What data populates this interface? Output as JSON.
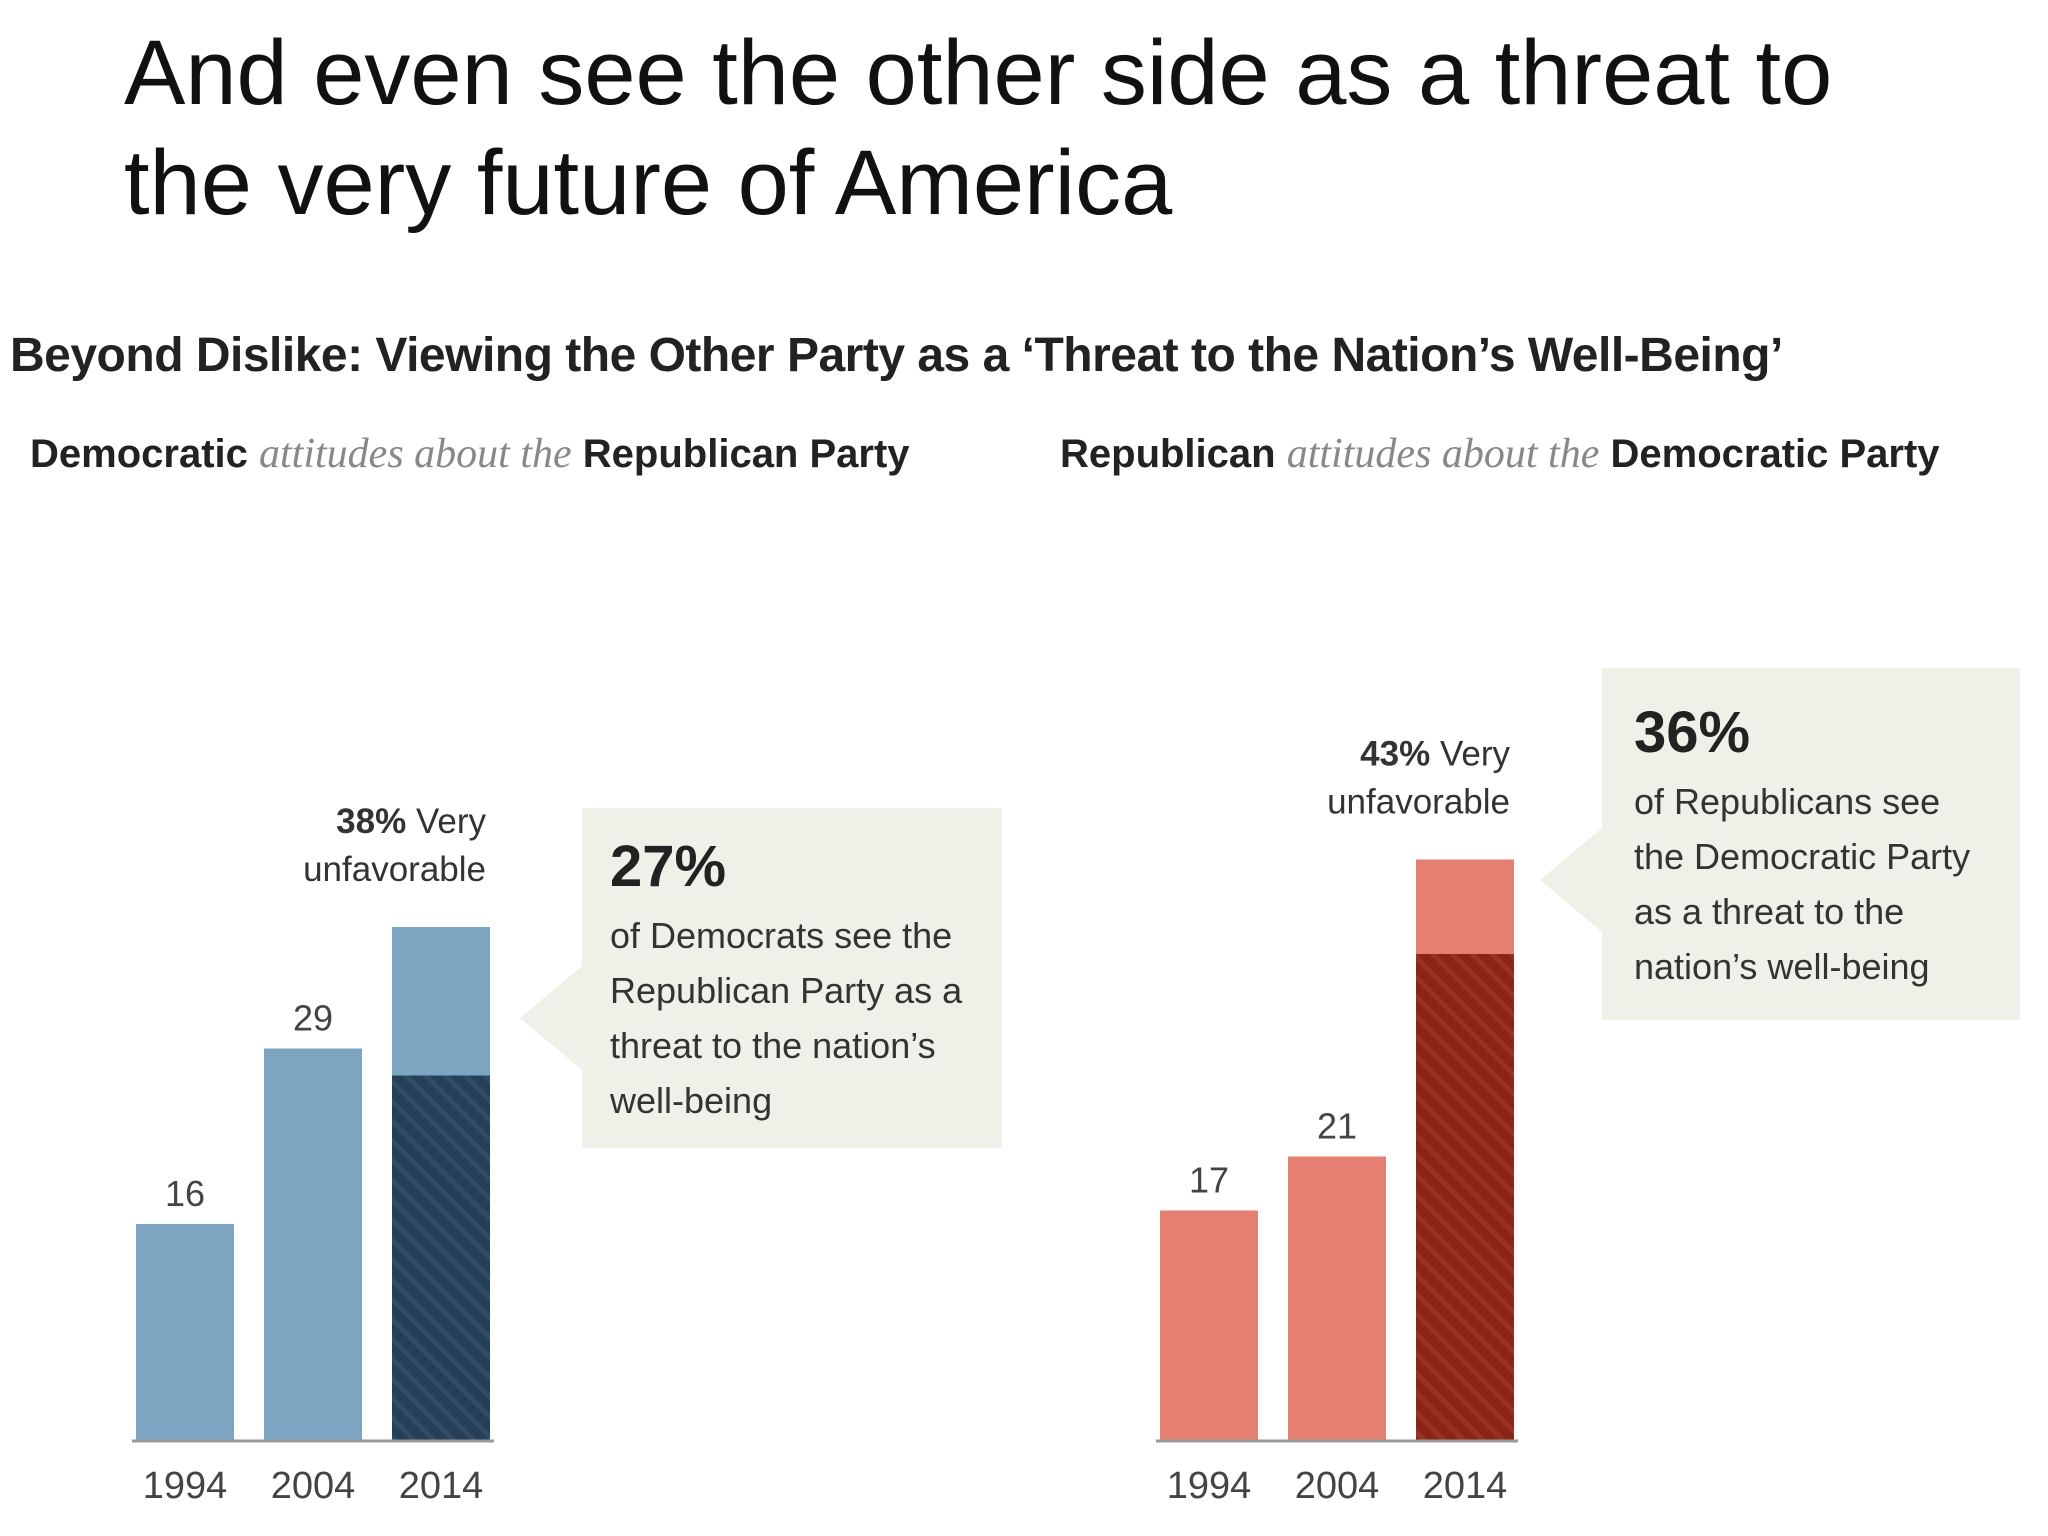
{
  "slide": {
    "heading": "And even see the other side as a threat to the very future of America"
  },
  "colors": {
    "dem_bar": "#7da5c1",
    "dem_threat": "#253f57",
    "rep_bar": "#e57f72",
    "rep_threat": "#8a2416",
    "callout_bg": "#f0efe8"
  },
  "chart_data": {
    "title": "Beyond Dislike: Viewing the Other Party as a ‘Threat to the Nation’s Well-Being’",
    "panels": [
      {
        "type": "bar",
        "subtitle": {
          "party": "Democratic",
          "middle": "attitudes about the",
          "other": "Republican Party"
        },
        "categories": [
          "1994",
          "2004",
          "2014"
        ],
        "ylim": [
          0,
          50
        ],
        "series": [
          {
            "values": [
              16,
              29,
              38
            ]
          },
          {
            "values": [
              null,
              null,
              27
            ]
          }
        ],
        "data_labels": [
          "16",
          "29",
          ""
        ],
        "top_label": {
          "pct": "38%",
          "text_after": " Very",
          "line2": "unfavorable"
        },
        "callout": {
          "value": "27%",
          "text": "of Democrats see the Republican Party as a threat to the nation’s well-being"
        }
      },
      {
        "type": "bar",
        "subtitle": {
          "party": "Republican",
          "middle": "attitudes about the",
          "other": "Democratic Party"
        },
        "categories": [
          "1994",
          "2004",
          "2014"
        ],
        "ylim": [
          0,
          50
        ],
        "series": [
          {
            "values": [
              17,
              21,
              43
            ]
          },
          {
            "values": [
              null,
              null,
              36
            ]
          }
        ],
        "data_labels": [
          "17",
          "21",
          ""
        ],
        "top_label": {
          "pct": "43%",
          "text_after": " Very",
          "line2": "unfavorable"
        },
        "callout": {
          "value": "36%",
          "text": "of Republicans see the Democratic Party as a threat to the nation’s well-being"
        }
      }
    ]
  }
}
